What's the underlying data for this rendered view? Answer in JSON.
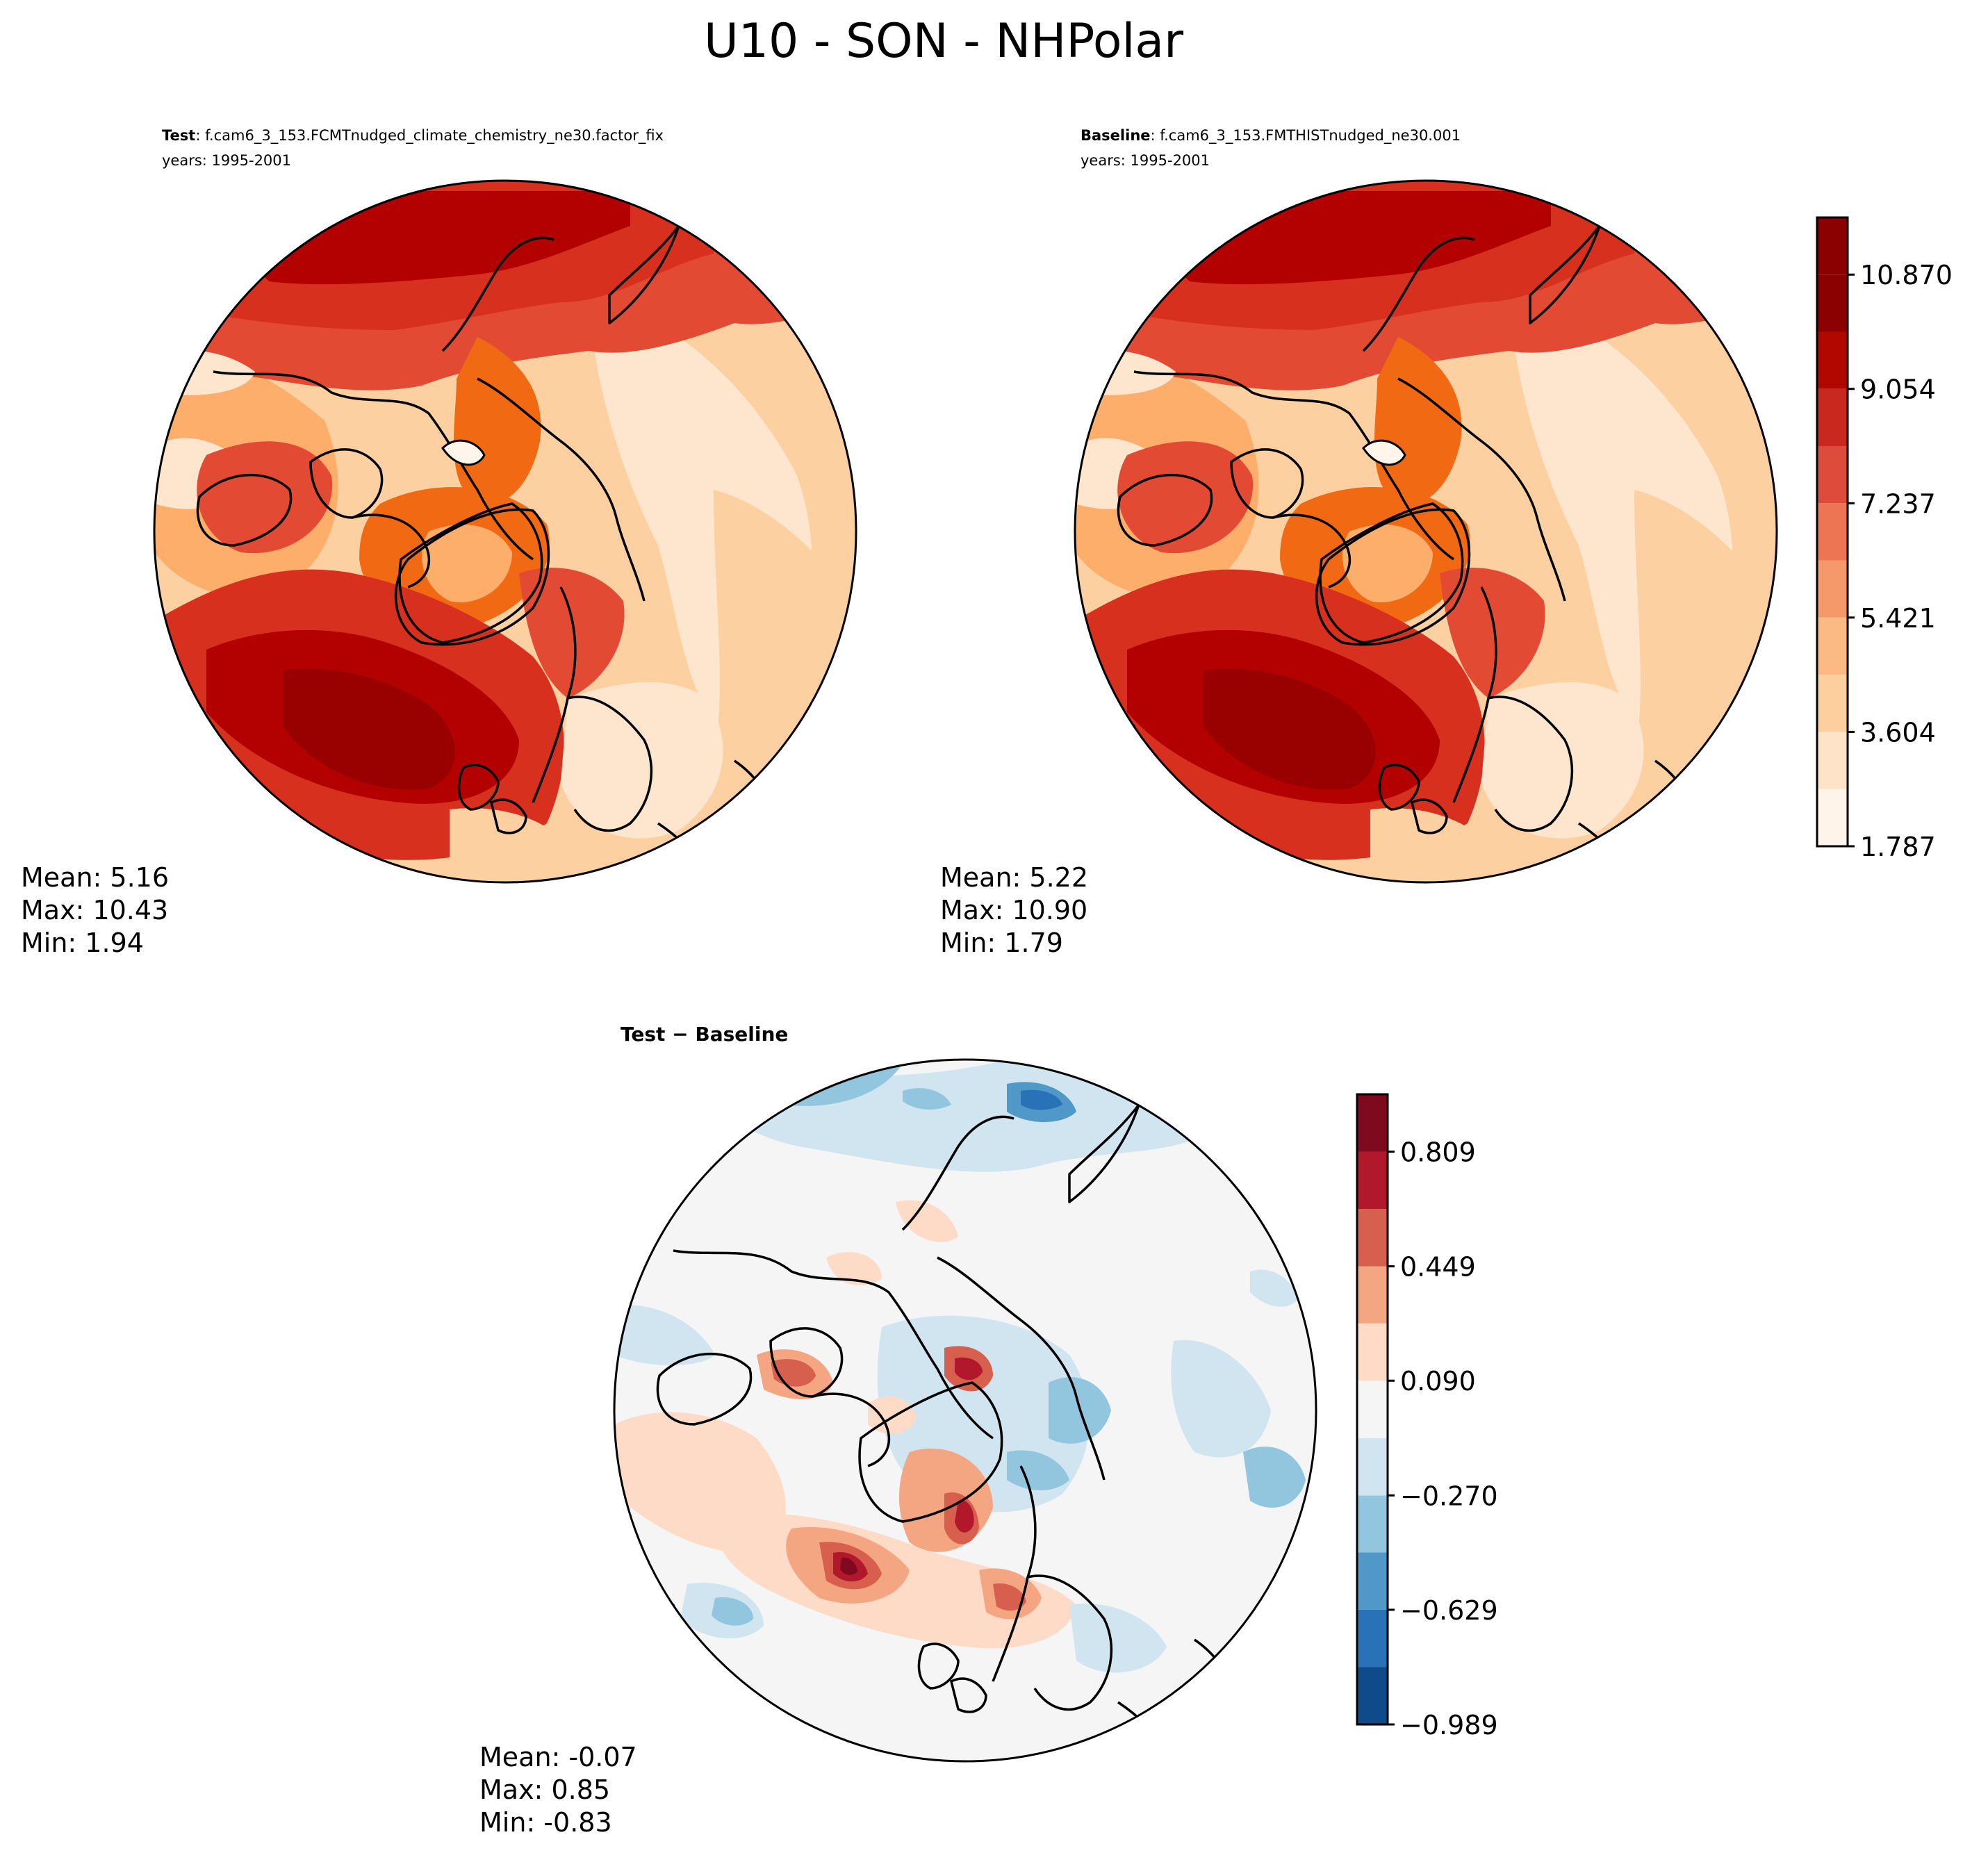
{
  "figure": {
    "suptitle": "U10 - SON - NHPolar"
  },
  "panels": {
    "test": {
      "label": "Test",
      "case": ": f.cam6_3_153.FCMTnudged_climate_chemistry_ne30.factor_fix",
      "years": "years: 1995-2001",
      "stats": {
        "mean": "Mean:  5.16",
        "max": "Max: 10.43",
        "min": "Min:  1.94"
      }
    },
    "baseline": {
      "label": "Baseline",
      "case": ": f.cam6_3_153.FMTHISTnudged_ne30.001",
      "years": "years: 1995-2001",
      "stats": {
        "mean": "Mean:  5.22",
        "max": "Max: 10.90",
        "min": "Min:  1.79"
      }
    },
    "diff": {
      "title": "Test − Baseline",
      "stats": {
        "mean": "Mean: -0.07",
        "max": "Max:  0.85",
        "min": "Min: -0.83"
      }
    }
  },
  "colors": {
    "seq": [
      "#fff5eb",
      "#fee6ce",
      "#fdd0a2",
      "#fdae6b",
      "#fd8d3c",
      "#f16913",
      "#e34a33",
      "#d7301f",
      "#b30000",
      "#7f0000",
      "#990000"
    ],
    "reds": [
      "#fff4ea",
      "#fee3c9",
      "#fdcf9f",
      "#fbb983",
      "#f6996a",
      "#ee7554",
      "#de4b3a",
      "#c9281f",
      "#b10701",
      "#8b0000"
    ],
    "div": [
      "#0f4a8a",
      "#2a72b8",
      "#4f98c8",
      "#92c5de",
      "#d1e5f0",
      "#f5f5f5",
      "#fddbc7",
      "#f4a582",
      "#d6604d",
      "#b2182b",
      "#7f0a20"
    ]
  },
  "chart_data": [
    {
      "type": "heatmap",
      "title": "Test",
      "projection": "north polar stereographic",
      "colorbar": false,
      "levels": [
        1.787,
        2.695,
        3.604,
        4.512,
        5.421,
        6.329,
        7.237,
        8.146,
        9.054,
        9.962,
        10.87,
        11.778
      ],
      "mean": 5.16,
      "max": 10.43,
      "min": 1.94
    },
    {
      "type": "heatmap",
      "title": "Baseline",
      "projection": "north polar stereographic",
      "colorbar": true,
      "colorbar_ticks": [
        "1.787",
        "3.604",
        "5.421",
        "7.237",
        "9.054",
        "10.870"
      ],
      "levels": [
        1.787,
        2.695,
        3.604,
        4.512,
        5.421,
        6.329,
        7.237,
        8.146,
        9.054,
        9.962,
        10.87,
        11.778
      ],
      "mean": 5.22,
      "max": 10.9,
      "min": 1.79
    },
    {
      "type": "heatmap",
      "title": "Test − Baseline",
      "projection": "north polar stereographic",
      "colorbar": true,
      "colorbar_ticks": [
        "−0.989",
        "−0.629",
        "−0.270",
        "0.090",
        "0.449",
        "0.809"
      ],
      "levels": [
        -0.989,
        -0.809,
        -0.629,
        -0.449,
        -0.27,
        -0.09,
        0.09,
        0.27,
        0.449,
        0.629,
        0.809,
        0.989
      ],
      "mean": -0.07,
      "max": 0.85,
      "min": -0.83
    }
  ]
}
